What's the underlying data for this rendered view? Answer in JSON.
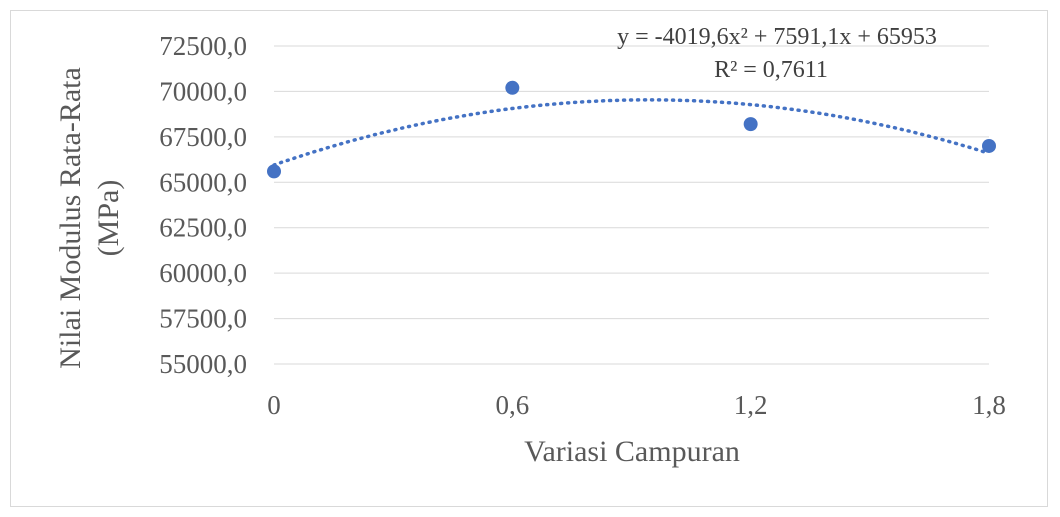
{
  "chart_data": {
    "type": "scatter",
    "x": [
      0,
      0.6,
      1.2,
      1.8
    ],
    "y": [
      65600,
      70200,
      68200,
      67000
    ],
    "x_ticks": [
      "0",
      "0,6",
      "1,2",
      "1,8"
    ],
    "x_tick_values": [
      0,
      0.6,
      1.2,
      1.8
    ],
    "y_ticks": [
      "55000,0",
      "57500,0",
      "60000,0",
      "62500,0",
      "65000,0",
      "67500,0",
      "70000,0",
      "72500,0"
    ],
    "y_tick_values": [
      55000,
      57500,
      60000,
      62500,
      65000,
      67500,
      70000,
      72500
    ],
    "xlim": [
      0,
      1.8
    ],
    "ylim": [
      55000,
      72500
    ],
    "xlabel": "Variasi Campuran",
    "ylabel_line1": "Nilai Modulus Rata-Rata",
    "ylabel_line2": "(MPa)",
    "trendline": {
      "type": "polynomial",
      "coefficients": [
        -4019.6,
        7591.1,
        65953
      ],
      "equation": "y = -4019,6x² + 7591,1x + 65953",
      "r_squared": "R² = 0,7611"
    },
    "grid": true,
    "colors": {
      "marker": "#4472c4",
      "trendline": "#4472c4",
      "grid": "#d9d9d9",
      "text": "#595959"
    }
  }
}
